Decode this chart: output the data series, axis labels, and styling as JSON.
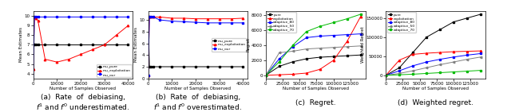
{
  "fig_width": 6.4,
  "fig_height": 1.41,
  "dpi": 100,
  "captions": [
    "(a)  Rate  of  debiasing,\n$f^1$ and $f^0$ underestimated.",
    "(b)  Rate  of  debiasing,\n$f^1$ and $f^0$ overestimated.",
    "(c)  Regret.",
    "(d)  Weighted regret."
  ],
  "subplot_a": {
    "x": [
      0,
      500,
      1000,
      2000,
      5000,
      10000,
      15000,
      20000,
      25000,
      30000,
      35000,
      40000
    ],
    "mu_pure": [
      7.0,
      7.0,
      7.0,
      7.0,
      7.0,
      7.0,
      7.0,
      7.0,
      7.0,
      7.0,
      7.0,
      7.0
    ],
    "mu_exploitation": [
      4.5,
      9.9,
      9.8,
      9.5,
      5.5,
      5.2,
      5.5,
      6.0,
      6.5,
      7.0,
      8.0,
      9.0
    ],
    "mu_our": [
      3.0,
      9.9,
      9.9,
      9.9,
      9.9,
      9.9,
      9.9,
      9.9,
      9.9,
      9.9,
      9.9,
      9.9
    ],
    "ylabel": "Mean Estimates",
    "xlabel": "Number of Samples Observed",
    "ylim": [
      3.5,
      10.5
    ]
  },
  "subplot_b": {
    "x": [
      0,
      500,
      1000,
      2000,
      5000,
      10000,
      15000,
      20000,
      25000,
      30000,
      35000,
      40000
    ],
    "mu_pure": [
      10.5,
      2.0,
      2.0,
      2.0,
      2.0,
      2.0,
      2.0,
      2.0,
      2.0,
      2.0,
      2.0,
      2.0
    ],
    "mu_exploitation": [
      0.5,
      10.5,
      10.5,
      10.5,
      10.5,
      10.3,
      10.3,
      10.2,
      10.2,
      10.2,
      10.2,
      10.3
    ],
    "mu_our": [
      0.5,
      10.5,
      10.5,
      10.5,
      10.0,
      9.8,
      9.7,
      9.6,
      9.5,
      9.5,
      9.5,
      9.5
    ],
    "ylabel": "Mean Estimates",
    "xlabel": "Number of Samples Observed",
    "ylim": [
      0,
      11.5
    ]
  },
  "subplot_c": {
    "x": [
      0,
      20000,
      40000,
      60000,
      80000,
      100000,
      120000,
      140000
    ],
    "pure": [
      0,
      1200,
      1800,
      2200,
      2400,
      2500,
      2600,
      2700
    ],
    "exploitation": [
      0,
      80,
      150,
      300,
      800,
      2000,
      4500,
      7800
    ],
    "adaptive_80": [
      0,
      2200,
      3800,
      5000,
      5200,
      5300,
      5400,
      5500
    ],
    "adaptive_50": [
      0,
      3000,
      3200,
      3500,
      3600,
      3700,
      3800,
      3900
    ],
    "adaptive_70": [
      0,
      1800,
      4000,
      5800,
      6500,
      7000,
      7500,
      8100
    ],
    "ylabel": "Regret",
    "xlabel": "Number of Samples Observed"
  },
  "subplot_d": {
    "x": [
      0,
      20000,
      40000,
      60000,
      80000,
      100000,
      120000,
      140000
    ],
    "pure": [
      0,
      20000,
      60000,
      100000,
      120000,
      140000,
      150000,
      160000
    ],
    "exploitation": [
      0,
      40000,
      55000,
      58000,
      60000,
      62000,
      63000,
      64000
    ],
    "adaptive_80": [
      0,
      12000,
      25000,
      35000,
      42000,
      48000,
      53000,
      57000
    ],
    "adaptive_50": [
      0,
      5000,
      12000,
      20000,
      28000,
      35000,
      42000,
      48000
    ],
    "adaptive_70": [
      0,
      1500,
      3000,
      5000,
      7000,
      9000,
      11000,
      13000
    ],
    "ylabel": "Weighted Regret",
    "xlabel": "Number of Samples Observed"
  },
  "colors": {
    "pure": "#000000",
    "exploitation": "#ff0000",
    "adaptive_80": "#0000ff",
    "adaptive_50": "#808080",
    "adaptive_70": "#00bb00"
  },
  "linewidth": 0.7,
  "markersize": 1.8,
  "fontsize_tick": 4,
  "fontsize_label": 4,
  "fontsize_legend": 3.2,
  "fontsize_caption": 6.5
}
